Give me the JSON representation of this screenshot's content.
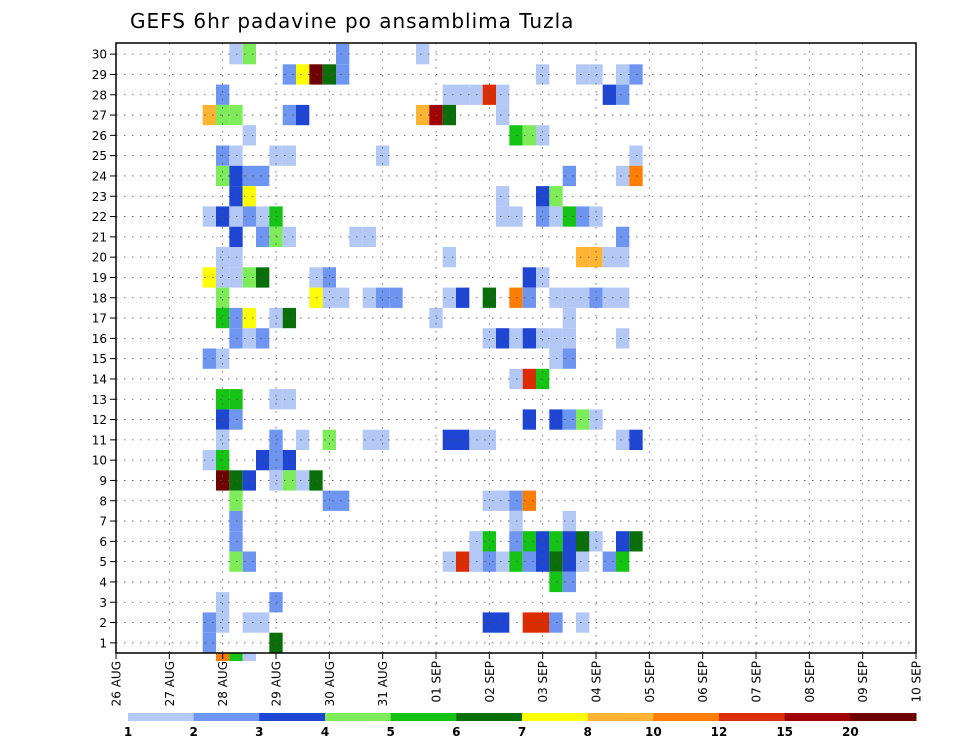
{
  "chart_data": {
    "type": "heatmap",
    "title": "GEFS 6hr padavine po ansamblima Tuzla",
    "xlabel": "",
    "ylabel": "",
    "x_tick_labels": [
      "26 AUG",
      "27 AUG",
      "28 AUG",
      "29 AUG",
      "30 AUG",
      "31 AUG",
      "01 SEP",
      "02 SEP",
      "03 SEP",
      "04 SEP",
      "05 SEP",
      "06 SEP",
      "07 SEP",
      "08 SEP",
      "09 SEP",
      "10 SEP"
    ],
    "x_unit": "6-hour steps from 26 AUG",
    "y_tick_labels": [
      "1",
      "2",
      "3",
      "4",
      "5",
      "6",
      "7",
      "8",
      "9",
      "10",
      "11",
      "12",
      "13",
      "14",
      "15",
      "16",
      "17",
      "18",
      "19",
      "20",
      "21",
      "22",
      "23",
      "24",
      "25",
      "26",
      "27",
      "28",
      "29",
      "30"
    ],
    "ylim": [
      0.5,
      30.5
    ],
    "grid": "dotted",
    "colorbar": {
      "labels": [
        "1",
        "2",
        "3",
        "4",
        "5",
        "6",
        "7",
        "8",
        "10",
        "12",
        "15",
        "20"
      ],
      "colors": [
        "#b4c8f5",
        "#6e96f0",
        "#1e46d2",
        "#7deb5a",
        "#14c314",
        "#0a6e0a",
        "#ffff00",
        "#ffb432",
        "#ff7d00",
        "#dc2d00",
        "#a00000",
        "#6e0000"
      ]
    },
    "levels_note": "cell value = colorbar band index 1..12",
    "cells": [
      [
        30,
        9,
        1
      ],
      [
        30,
        10,
        4
      ],
      [
        30,
        17,
        2
      ],
      [
        30,
        23,
        1
      ],
      [
        29,
        13,
        2
      ],
      [
        29,
        14,
        7
      ],
      [
        29,
        15,
        12
      ],
      [
        29,
        16,
        6
      ],
      [
        29,
        17,
        2
      ],
      [
        29,
        32,
        1
      ],
      [
        29,
        35,
        1
      ],
      [
        29,
        36,
        1
      ],
      [
        29,
        38,
        1
      ],
      [
        29,
        39,
        2
      ],
      [
        28,
        8,
        2
      ],
      [
        28,
        25,
        1
      ],
      [
        28,
        26,
        1
      ],
      [
        28,
        27,
        1
      ],
      [
        28,
        28,
        10
      ],
      [
        28,
        29,
        1
      ],
      [
        28,
        37,
        3
      ],
      [
        28,
        38,
        2
      ],
      [
        27,
        7,
        8
      ],
      [
        27,
        8,
        4
      ],
      [
        27,
        9,
        4
      ],
      [
        27,
        13,
        2
      ],
      [
        27,
        14,
        3
      ],
      [
        27,
        23,
        8
      ],
      [
        27,
        24,
        11
      ],
      [
        27,
        25,
        6
      ],
      [
        27,
        29,
        1
      ],
      [
        26,
        10,
        1
      ],
      [
        26,
        30,
        5
      ],
      [
        26,
        31,
        4
      ],
      [
        26,
        32,
        1
      ],
      [
        25,
        8,
        2
      ],
      [
        25,
        9,
        1
      ],
      [
        25,
        12,
        1
      ],
      [
        25,
        13,
        1
      ],
      [
        25,
        20,
        1
      ],
      [
        25,
        39,
        1
      ],
      [
        24,
        8,
        4
      ],
      [
        24,
        9,
        3
      ],
      [
        24,
        10,
        2
      ],
      [
        24,
        11,
        2
      ],
      [
        24,
        34,
        2
      ],
      [
        24,
        38,
        1
      ],
      [
        24,
        39,
        9
      ],
      [
        23,
        9,
        3
      ],
      [
        23,
        10,
        7
      ],
      [
        23,
        29,
        1
      ],
      [
        23,
        32,
        3
      ],
      [
        23,
        33,
        4
      ],
      [
        22,
        7,
        1
      ],
      [
        22,
        8,
        3
      ],
      [
        22,
        9,
        1
      ],
      [
        22,
        10,
        2
      ],
      [
        22,
        11,
        1
      ],
      [
        22,
        12,
        5
      ],
      [
        22,
        29,
        1
      ],
      [
        22,
        30,
        1
      ],
      [
        22,
        32,
        2
      ],
      [
        22,
        33,
        1
      ],
      [
        22,
        34,
        5
      ],
      [
        22,
        35,
        2
      ],
      [
        22,
        36,
        1
      ],
      [
        21,
        9,
        3
      ],
      [
        21,
        11,
        2
      ],
      [
        21,
        12,
        4
      ],
      [
        21,
        13,
        1
      ],
      [
        21,
        18,
        1
      ],
      [
        21,
        19,
        1
      ],
      [
        21,
        38,
        2
      ],
      [
        20,
        8,
        1
      ],
      [
        20,
        9,
        1
      ],
      [
        20,
        25,
        1
      ],
      [
        20,
        35,
        8
      ],
      [
        20,
        36,
        8
      ],
      [
        20,
        37,
        1
      ],
      [
        20,
        38,
        1
      ],
      [
        19,
        7,
        7
      ],
      [
        19,
        8,
        1
      ],
      [
        19,
        9,
        1
      ],
      [
        19,
        10,
        4
      ],
      [
        19,
        11,
        6
      ],
      [
        19,
        15,
        1
      ],
      [
        19,
        16,
        2
      ],
      [
        19,
        31,
        3
      ],
      [
        19,
        32,
        1
      ],
      [
        18,
        8,
        4
      ],
      [
        18,
        15,
        7
      ],
      [
        18,
        16,
        1
      ],
      [
        18,
        17,
        1
      ],
      [
        18,
        19,
        1
      ],
      [
        18,
        20,
        2
      ],
      [
        18,
        21,
        2
      ],
      [
        18,
        25,
        1
      ],
      [
        18,
        26,
        3
      ],
      [
        18,
        28,
        6
      ],
      [
        18,
        30,
        9
      ],
      [
        18,
        31,
        2
      ],
      [
        18,
        33,
        1
      ],
      [
        18,
        34,
        1
      ],
      [
        18,
        35,
        1
      ],
      [
        18,
        36,
        2
      ],
      [
        18,
        37,
        1
      ],
      [
        18,
        38,
        1
      ],
      [
        17,
        8,
        5
      ],
      [
        17,
        9,
        2
      ],
      [
        17,
        10,
        7
      ],
      [
        17,
        12,
        1
      ],
      [
        17,
        13,
        6
      ],
      [
        17,
        24,
        1
      ],
      [
        17,
        34,
        1
      ],
      [
        16,
        9,
        2
      ],
      [
        16,
        10,
        1
      ],
      [
        16,
        11,
        2
      ],
      [
        16,
        28,
        1
      ],
      [
        16,
        29,
        3
      ],
      [
        16,
        30,
        1
      ],
      [
        16,
        31,
        3
      ],
      [
        16,
        32,
        1
      ],
      [
        16,
        33,
        1
      ],
      [
        16,
        34,
        1
      ],
      [
        16,
        38,
        1
      ],
      [
        15,
        7,
        2
      ],
      [
        15,
        8,
        1
      ],
      [
        15,
        33,
        1
      ],
      [
        15,
        34,
        2
      ],
      [
        14,
        30,
        1
      ],
      [
        14,
        31,
        10
      ],
      [
        14,
        32,
        5
      ],
      [
        13,
        8,
        5
      ],
      [
        13,
        9,
        5
      ],
      [
        13,
        12,
        1
      ],
      [
        13,
        13,
        1
      ],
      [
        12,
        8,
        3
      ],
      [
        12,
        9,
        2
      ],
      [
        12,
        31,
        3
      ],
      [
        12,
        33,
        3
      ],
      [
        12,
        34,
        2
      ],
      [
        12,
        35,
        4
      ],
      [
        12,
        36,
        1
      ],
      [
        11,
        8,
        1
      ],
      [
        11,
        12,
        2
      ],
      [
        11,
        14,
        1
      ],
      [
        11,
        16,
        4
      ],
      [
        11,
        19,
        1
      ],
      [
        11,
        20,
        1
      ],
      [
        11,
        25,
        3
      ],
      [
        11,
        26,
        3
      ],
      [
        11,
        27,
        1
      ],
      [
        11,
        28,
        1
      ],
      [
        11,
        38,
        1
      ],
      [
        11,
        39,
        3
      ],
      [
        10,
        7,
        1
      ],
      [
        10,
        8,
        5
      ],
      [
        10,
        11,
        3
      ],
      [
        10,
        12,
        2
      ],
      [
        10,
        13,
        3
      ],
      [
        9,
        8,
        12
      ],
      [
        9,
        9,
        6
      ],
      [
        9,
        10,
        3
      ],
      [
        9,
        12,
        1
      ],
      [
        9,
        13,
        4
      ],
      [
        9,
        14,
        1
      ],
      [
        9,
        15,
        6
      ],
      [
        8,
        9,
        4
      ],
      [
        8,
        16,
        2
      ],
      [
        8,
        17,
        2
      ],
      [
        8,
        28,
        1
      ],
      [
        8,
        29,
        1
      ],
      [
        8,
        30,
        2
      ],
      [
        8,
        31,
        9
      ],
      [
        7,
        9,
        2
      ],
      [
        7,
        30,
        1
      ],
      [
        7,
        34,
        1
      ],
      [
        6,
        9,
        2
      ],
      [
        6,
        27,
        1
      ],
      [
        6,
        28,
        5
      ],
      [
        6,
        30,
        2
      ],
      [
        6,
        31,
        5
      ],
      [
        6,
        32,
        3
      ],
      [
        6,
        33,
        5
      ],
      [
        6,
        34,
        3
      ],
      [
        6,
        35,
        6
      ],
      [
        6,
        36,
        1
      ],
      [
        6,
        38,
        3
      ],
      [
        6,
        39,
        6
      ],
      [
        5,
        9,
        4
      ],
      [
        5,
        10,
        2
      ],
      [
        5,
        25,
        1
      ],
      [
        5,
        26,
        10
      ],
      [
        5,
        27,
        1
      ],
      [
        5,
        28,
        2
      ],
      [
        5,
        29,
        1
      ],
      [
        5,
        30,
        5
      ],
      [
        5,
        31,
        2
      ],
      [
        5,
        32,
        3
      ],
      [
        5,
        33,
        6
      ],
      [
        5,
        34,
        3
      ],
      [
        5,
        35,
        1
      ],
      [
        5,
        37,
        2
      ],
      [
        5,
        38,
        5
      ],
      [
        4,
        33,
        5
      ],
      [
        4,
        34,
        2
      ],
      [
        3,
        8,
        1
      ],
      [
        3,
        12,
        2
      ],
      [
        2,
        7,
        2
      ],
      [
        2,
        8,
        1
      ],
      [
        2,
        10,
        1
      ],
      [
        2,
        11,
        1
      ],
      [
        2,
        28,
        3
      ],
      [
        2,
        29,
        3
      ],
      [
        2,
        31,
        10
      ],
      [
        2,
        32,
        10
      ],
      [
        2,
        33,
        2
      ],
      [
        2,
        35,
        1
      ],
      [
        1,
        7,
        2
      ],
      [
        1,
        12,
        6
      ],
      [
        0,
        8,
        9
      ],
      [
        0,
        9,
        5
      ],
      [
        0,
        10,
        1
      ]
    ]
  }
}
